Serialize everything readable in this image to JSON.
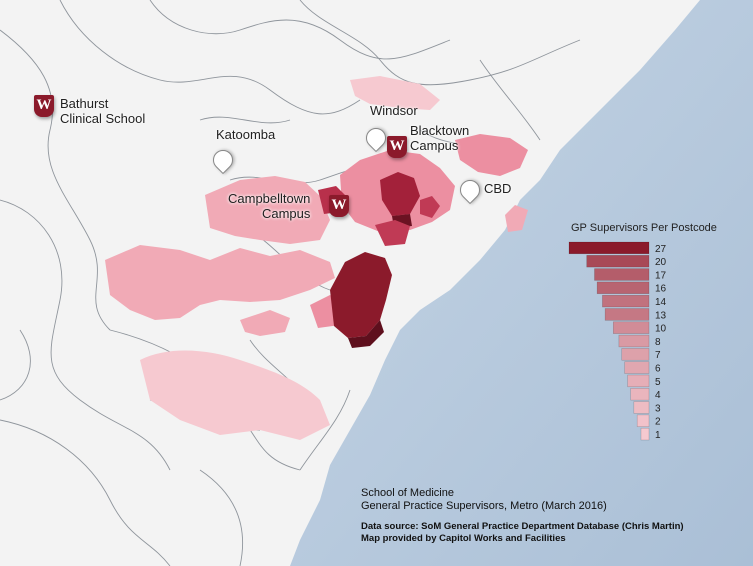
{
  "places": {
    "bathurst": "Bathurst\nClinical School",
    "katoomba": "Katoomba",
    "windsor": "Windsor",
    "blacktown": "Blacktown\nCampus",
    "campbelltown": "Campbelltown\nCampus",
    "cbd": "CBD"
  },
  "badge_letter": "W",
  "legend": {
    "title": "GP Supervisors Per Postcode",
    "values": [
      27,
      20,
      17,
      16,
      14,
      13,
      10,
      8,
      7,
      6,
      5,
      4,
      3,
      2,
      1
    ],
    "color_high": "#8b1a2b",
    "color_low": "#f6c9d0"
  },
  "credits": {
    "line1": "School of Medicine",
    "line2": "General Practice Supervisors, Metro (March 2016)",
    "line3": "Data source: SoM General Practice Department Database (Chris Martin)",
    "line4": "Map provided by Capitol Works and Facilities"
  },
  "colors": {
    "ocean": "#b7c9dc",
    "land": "#f4f4f4",
    "border": "#9aa0a6"
  }
}
